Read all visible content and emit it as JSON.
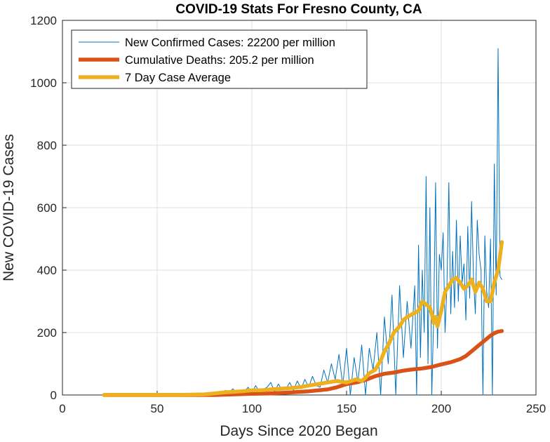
{
  "chart_data": {
    "type": "line",
    "title": "COVID-19 Stats For Fresno County, CA",
    "xlabel": "Days Since 2020 Began",
    "ylabel": "New COVID-19 Cases",
    "xlim": [
      0,
      250
    ],
    "ylim": [
      0,
      1200
    ],
    "xticks": [
      0,
      50,
      100,
      150,
      200,
      250
    ],
    "yticks": [
      0,
      200,
      400,
      600,
      800,
      1000,
      1200
    ],
    "grid": true,
    "legend_position": "top-left",
    "series": [
      {
        "name": "New Confirmed Cases: 22200 per million",
        "color": "#0072BD",
        "style": "thin",
        "x": [
          22,
          30,
          40,
          50,
          60,
          70,
          78,
          80,
          82,
          84,
          86,
          88,
          90,
          92,
          94,
          96,
          98,
          100,
          102,
          104,
          106,
          108,
          110,
          112,
          114,
          116,
          118,
          120,
          122,
          124,
          126,
          128,
          130,
          132,
          134,
          136,
          138,
          140,
          142,
          144,
          146,
          148,
          150,
          152,
          154,
          156,
          158,
          160,
          162,
          164,
          166,
          168,
          170,
          172,
          174,
          176,
          178,
          180,
          182,
          184,
          186,
          187,
          188,
          189,
          190,
          191,
          192,
          193,
          194,
          195,
          196,
          197,
          198,
          199,
          200,
          201,
          202,
          203,
          204,
          205,
          206,
          207,
          208,
          209,
          210,
          211,
          212,
          213,
          214,
          215,
          216,
          217,
          218,
          219,
          220,
          221,
          222,
          223,
          224,
          225,
          226,
          227,
          228,
          229,
          230,
          231,
          232
        ],
        "y": [
          0,
          0,
          0,
          0,
          0,
          0,
          2,
          5,
          10,
          3,
          15,
          8,
          20,
          5,
          12,
          10,
          25,
          8,
          30,
          10,
          18,
          25,
          40,
          10,
          35,
          15,
          20,
          40,
          15,
          45,
          20,
          50,
          25,
          60,
          30,
          25,
          80,
          40,
          100,
          50,
          130,
          30,
          150,
          0,
          120,
          40,
          160,
          0,
          150,
          80,
          200,
          0,
          250,
          100,
          320,
          0,
          350,
          120,
          300,
          150,
          350,
          0,
          480,
          120,
          400,
          200,
          700,
          100,
          600,
          0,
          250,
          680,
          150,
          450,
          400,
          520,
          200,
          350,
          680,
          260,
          460,
          280,
          560,
          300,
          510,
          360,
          420,
          240,
          540,
          310,
          620,
          380,
          260,
          560,
          450,
          400,
          0,
          510,
          330,
          280,
          500,
          0,
          740,
          320,
          1110,
          380,
          370
        ]
      },
      {
        "name": "Cumulative Deaths: 205.2 per million",
        "color": "#D95319",
        "style": "thick",
        "x": [
          22,
          40,
          60,
          80,
          90,
          100,
          110,
          120,
          130,
          140,
          145,
          150,
          155,
          160,
          165,
          170,
          175,
          180,
          185,
          190,
          195,
          200,
          205,
          210,
          213,
          216,
          218,
          220,
          222,
          224,
          226,
          228,
          230,
          232
        ],
        "y": [
          0,
          0,
          0,
          0,
          2,
          4,
          5,
          8,
          12,
          18,
          25,
          35,
          40,
          48,
          60,
          68,
          72,
          78,
          82,
          85,
          90,
          98,
          105,
          115,
          125,
          140,
          150,
          160,
          170,
          180,
          190,
          198,
          203,
          205
        ]
      },
      {
        "name": "7 Day Case Average",
        "color": "#EDB120",
        "style": "thick",
        "x": [
          22,
          40,
          60,
          75,
          80,
          85,
          90,
          95,
          100,
          105,
          110,
          115,
          120,
          125,
          130,
          135,
          140,
          145,
          150,
          155,
          158,
          160,
          162,
          165,
          168,
          170,
          172,
          175,
          178,
          180,
          182,
          185,
          188,
          190,
          192,
          194,
          195,
          196,
          197,
          198,
          200,
          202,
          204,
          206,
          208,
          210,
          212,
          214,
          216,
          218,
          220,
          222,
          224,
          226,
          228,
          230,
          232
        ],
        "y": [
          0,
          0,
          0,
          2,
          5,
          8,
          10,
          12,
          15,
          15,
          18,
          20,
          22,
          25,
          30,
          35,
          40,
          45,
          40,
          50,
          45,
          55,
          70,
          80,
          110,
          140,
          160,
          200,
          220,
          240,
          250,
          260,
          270,
          300,
          290,
          280,
          260,
          230,
          250,
          220,
          270,
          330,
          350,
          370,
          375,
          360,
          340,
          350,
          370,
          330,
          360,
          340,
          300,
          300,
          360,
          400,
          490
        ]
      }
    ]
  }
}
